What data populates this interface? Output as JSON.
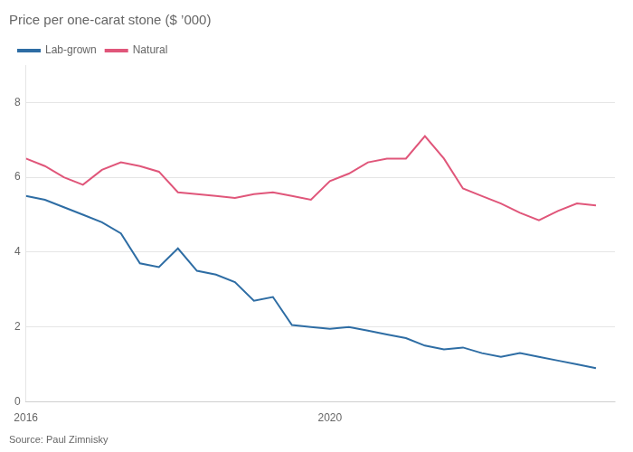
{
  "chart_data": {
    "type": "line",
    "title": "Price per one-carat stone ($ ’000)",
    "source": "Source: Paul Zimnisky",
    "x": [
      2016.0,
      2016.25,
      2016.5,
      2016.75,
      2017.0,
      2017.25,
      2017.5,
      2017.75,
      2018.0,
      2018.25,
      2018.5,
      2018.75,
      2019.0,
      2019.25,
      2019.5,
      2019.75,
      2020.0,
      2020.25,
      2020.5,
      2020.75,
      2021.0,
      2021.25,
      2021.5,
      2021.75,
      2022.0,
      2022.25,
      2022.5,
      2022.75,
      2023.0,
      2023.25,
      2023.5
    ],
    "series": [
      {
        "name": "Lab-grown",
        "color": "#2e6da4",
        "values": [
          5.5,
          5.4,
          5.2,
          5.0,
          4.8,
          4.5,
          3.7,
          3.6,
          4.1,
          3.5,
          3.4,
          3.2,
          2.7,
          2.8,
          2.05,
          2.0,
          1.95,
          2.0,
          1.9,
          1.8,
          1.7,
          1.5,
          1.4,
          1.45,
          1.3,
          1.2,
          1.3,
          1.2,
          1.1,
          1.0,
          0.9
        ]
      },
      {
        "name": "Natural",
        "color": "#e0567a",
        "values": [
          6.5,
          6.3,
          6.0,
          5.8,
          6.2,
          6.4,
          6.3,
          6.15,
          5.6,
          5.55,
          5.5,
          5.45,
          5.55,
          5.6,
          5.5,
          5.4,
          5.9,
          6.1,
          6.4,
          6.5,
          6.5,
          7.1,
          6.5,
          5.7,
          5.5,
          5.3,
          5.05,
          4.85,
          5.1,
          5.3,
          5.25
        ]
      }
    ],
    "xlim": [
      2016,
      2023.75
    ],
    "xticks": [
      2016,
      {
        "value": 2017,
        "label": null
      },
      {
        "value": 2018,
        "label": null
      },
      {
        "value": 2019,
        "label": null
      },
      2020,
      {
        "value": 2021,
        "label": null
      },
      {
        "value": 2022,
        "label": null
      },
      {
        "value": 2023,
        "label": null
      }
    ],
    "ylim": [
      0,
      9
    ],
    "yticks": [
      0,
      2,
      4,
      6,
      8
    ],
    "grid": "y",
    "legend": "upper left"
  }
}
